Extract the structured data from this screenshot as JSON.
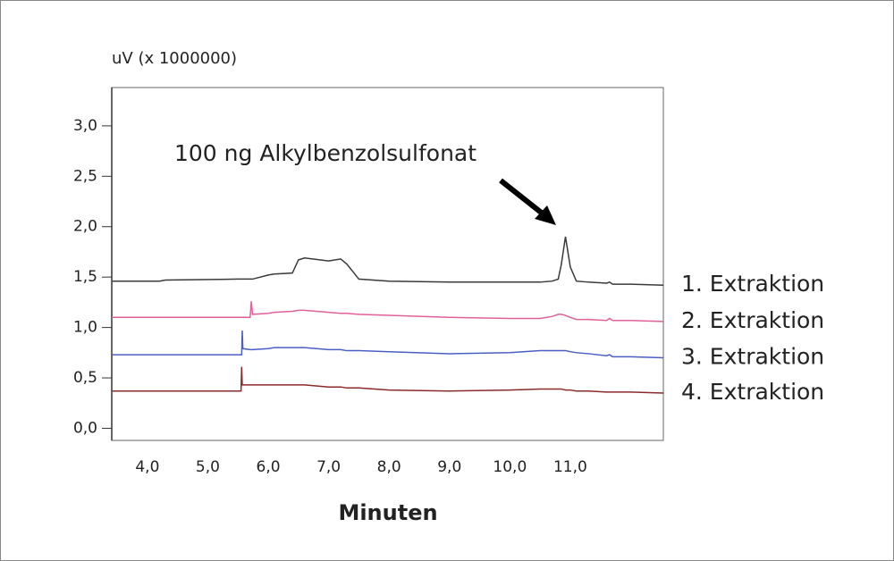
{
  "chart_data": {
    "type": "line",
    "y_unit_label": "uV (x 1000000)",
    "x_label": "Minuten",
    "annotation": "100 ng Alkylbenzolsulfonat",
    "xlim": [
      3.41,
      12.54
    ],
    "ylim": [
      -0.12,
      3.38
    ],
    "xticks": [
      {
        "value": 4,
        "label": "4,0"
      },
      {
        "value": 5,
        "label": "5,0"
      },
      {
        "value": 6,
        "label": "6,0"
      },
      {
        "value": 7,
        "label": "7,0"
      },
      {
        "value": 8,
        "label": "8,0"
      },
      {
        "value": 9,
        "label": "9,0"
      },
      {
        "value": 10,
        "label": "10,0"
      },
      {
        "value": 11,
        "label": "11,0"
      }
    ],
    "yticks": [
      {
        "value": 0,
        "label": "0,0"
      },
      {
        "value": 0.5,
        "label": "0,5"
      },
      {
        "value": 1,
        "label": "1,0"
      },
      {
        "value": 1.5,
        "label": "1,5"
      },
      {
        "value": 2,
        "label": "2,0"
      },
      {
        "value": 2.5,
        "label": "2,5"
      },
      {
        "value": 3,
        "label": "3,0"
      }
    ],
    "x": [
      3.41,
      4.2,
      4.3,
      5.5,
      5.55,
      5.56,
      5.57,
      5.58,
      5.7,
      5.72,
      5.74,
      6.0,
      6.1,
      6.4,
      6.5,
      6.6,
      7.0,
      7.2,
      7.3,
      7.5,
      8.0,
      9.0,
      10.0,
      10.5,
      10.7,
      10.8,
      10.85,
      10.92,
      11.0,
      11.1,
      11.3,
      11.6,
      11.65,
      11.7,
      12.0,
      12.54
    ],
    "series": [
      {
        "name": "1. Extraktion",
        "color": "#3a3a3a",
        "values": [
          1.46,
          1.46,
          1.47,
          1.48,
          1.48,
          1.48,
          1.48,
          1.48,
          1.48,
          1.48,
          1.48,
          1.52,
          1.53,
          1.54,
          1.67,
          1.69,
          1.66,
          1.68,
          1.63,
          1.48,
          1.46,
          1.45,
          1.45,
          1.45,
          1.46,
          1.48,
          1.62,
          1.9,
          1.6,
          1.46,
          1.45,
          1.44,
          1.45,
          1.43,
          1.43,
          1.42
        ]
      },
      {
        "name": "2. Extraktion",
        "color": "#e0609a",
        "values": [
          1.1,
          1.1,
          1.1,
          1.1,
          1.1,
          1.1,
          1.1,
          1.1,
          1.1,
          1.26,
          1.13,
          1.14,
          1.15,
          1.16,
          1.17,
          1.17,
          1.15,
          1.14,
          1.14,
          1.13,
          1.12,
          1.1,
          1.09,
          1.09,
          1.11,
          1.13,
          1.13,
          1.12,
          1.1,
          1.08,
          1.08,
          1.07,
          1.09,
          1.07,
          1.07,
          1.06
        ]
      },
      {
        "name": "3. Extraktion",
        "color": "#4a5fc4",
        "values": [
          0.73,
          0.73,
          0.73,
          0.73,
          0.73,
          0.73,
          0.97,
          0.79,
          0.78,
          0.78,
          0.78,
          0.79,
          0.8,
          0.8,
          0.8,
          0.8,
          0.78,
          0.78,
          0.77,
          0.77,
          0.76,
          0.74,
          0.75,
          0.77,
          0.77,
          0.77,
          0.77,
          0.77,
          0.76,
          0.75,
          0.74,
          0.72,
          0.73,
          0.71,
          0.71,
          0.7
        ]
      },
      {
        "name": "4. Extraktion",
        "color": "#8b2a2a",
        "values": [
          0.37,
          0.37,
          0.37,
          0.37,
          0.37,
          0.61,
          0.43,
          0.43,
          0.43,
          0.43,
          0.43,
          0.43,
          0.43,
          0.43,
          0.43,
          0.43,
          0.41,
          0.41,
          0.4,
          0.4,
          0.38,
          0.37,
          0.38,
          0.39,
          0.39,
          0.39,
          0.39,
          0.38,
          0.38,
          0.37,
          0.37,
          0.36,
          0.36,
          0.36,
          0.36,
          0.35
        ]
      }
    ]
  }
}
